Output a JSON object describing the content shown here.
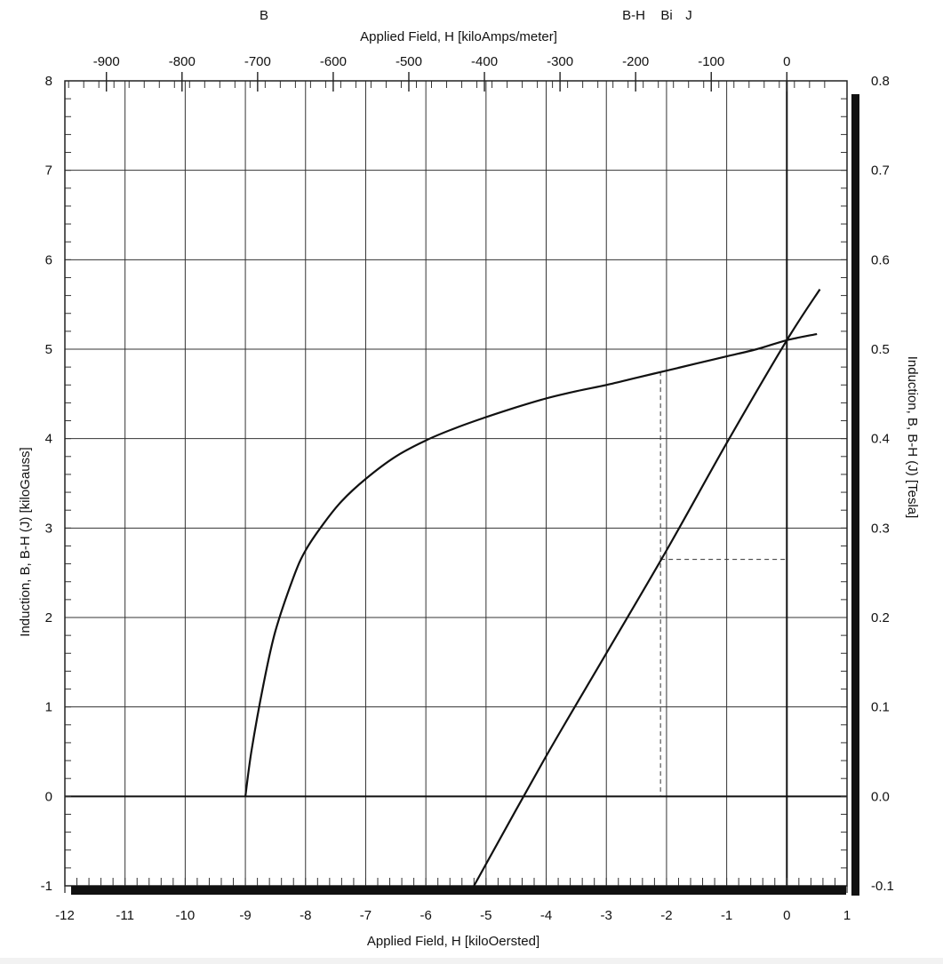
{
  "chart_data": {
    "type": "line",
    "x_axis_bottom": {
      "label": "Applied Field, H [kiloOersted]",
      "range": [
        -12,
        1
      ],
      "ticks": [
        -12,
        -11,
        -10,
        -9,
        -8,
        -7,
        -6,
        -5,
        -4,
        -3,
        -2,
        -1,
        0,
        1
      ]
    },
    "x_axis_top": {
      "label": "Applied Field, H [kiloAmps/meter]",
      "ticks": [
        -900,
        -800,
        -700,
        -600,
        -500,
        -400,
        -300,
        -200,
        -100,
        0
      ]
    },
    "y_axis_left": {
      "label": "Induction, B, B-H (J) [kiloGauss]",
      "range": [
        -1,
        8
      ],
      "ticks": [
        -1,
        0,
        1,
        2,
        3,
        4,
        5,
        6,
        7,
        8
      ]
    },
    "y_axis_right": {
      "label": "Induction, B, B-H (J) [Tesla]",
      "ticks": [
        "-0.1",
        "0.0",
        "0.1",
        "0.2",
        "0.3",
        "0.4",
        "0.5",
        "0.6",
        "0.7",
        "0.8"
      ]
    },
    "top_labels": [
      "B",
      "B-H",
      "Bi",
      "J"
    ],
    "grid": true,
    "series": [
      {
        "x": [
          -9.0,
          -8.9,
          -8.7,
          -8.5,
          -8.2,
          -8.0,
          -7.7,
          -7.4,
          -7.0,
          -6.5,
          -6.0,
          -5.5,
          -5.0,
          -4.5,
          -4.0,
          -3.5,
          -3.0,
          -2.5,
          -2.0,
          -1.5,
          -1.0,
          -0.5,
          0.0,
          0.5
        ],
        "y": [
          0.0,
          0.5,
          1.25,
          1.85,
          2.45,
          2.75,
          3.05,
          3.3,
          3.55,
          3.8,
          3.98,
          4.12,
          4.24,
          4.35,
          4.45,
          4.53,
          4.6,
          4.68,
          4.76,
          4.84,
          4.92,
          5.0,
          5.1,
          5.17
        ]
      },
      {
        "x": [
          -5.2,
          -4.0,
          -3.0,
          -2.0,
          -1.0,
          0.0,
          0.55
        ],
        "y": [
          -1.0,
          0.45,
          1.6,
          2.75,
          3.95,
          5.1,
          5.67
        ]
      }
    ],
    "reference_lines": [
      {
        "x": [
          -2.1,
          -2.1
        ],
        "y": [
          4.75,
          0.0
        ]
      },
      {
        "x": [
          -2.1,
          0.0
        ],
        "y": [
          2.65,
          2.65
        ]
      }
    ]
  }
}
